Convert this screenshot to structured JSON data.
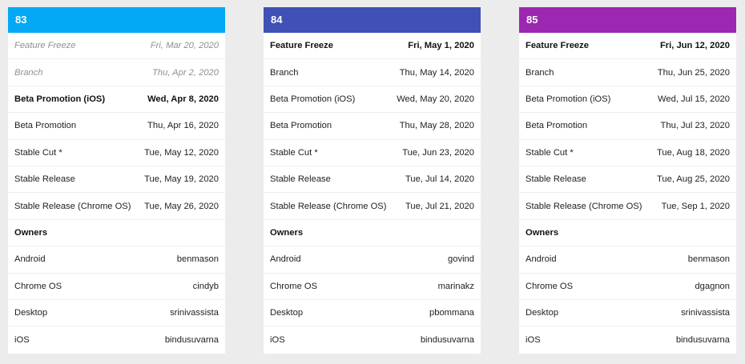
{
  "colors": {
    "card_83": "#03a9f4",
    "card_84": "#3f51b5",
    "card_85": "#9c27b0",
    "background": "#ececec"
  },
  "cards": [
    {
      "milestone": "83",
      "rows": [
        {
          "label": "Feature Freeze",
          "value": "Fri, Mar 20, 2020",
          "style": "muted"
        },
        {
          "label": "Branch",
          "value": "Thu, Apr 2, 2020",
          "style": "muted"
        },
        {
          "label": "Beta Promotion (iOS)",
          "value": "Wed, Apr 8, 2020",
          "style": "bold"
        },
        {
          "label": "Beta Promotion",
          "value": "Thu, Apr 16, 2020",
          "style": "normal"
        },
        {
          "label": "Stable Cut *",
          "value": "Tue, May 12, 2020",
          "style": "normal"
        },
        {
          "label": "Stable Release",
          "value": "Tue, May 19, 2020",
          "style": "normal"
        },
        {
          "label": "Stable Release (Chrome OS)",
          "value": "Tue, May 26, 2020",
          "style": "normal"
        },
        {
          "label": "Owners",
          "value": "",
          "style": "bold"
        },
        {
          "label": "Android",
          "value": "benmason",
          "style": "normal"
        },
        {
          "label": "Chrome OS",
          "value": "cindyb",
          "style": "normal"
        },
        {
          "label": "Desktop",
          "value": "srinivassista",
          "style": "normal"
        },
        {
          "label": "iOS",
          "value": "bindusuvarna",
          "style": "normal"
        }
      ]
    },
    {
      "milestone": "84",
      "rows": [
        {
          "label": "Feature Freeze",
          "value": "Fri, May 1, 2020",
          "style": "bold"
        },
        {
          "label": "Branch",
          "value": "Thu, May 14, 2020",
          "style": "normal"
        },
        {
          "label": "Beta Promotion (iOS)",
          "value": "Wed, May 20, 2020",
          "style": "normal"
        },
        {
          "label": "Beta Promotion",
          "value": "Thu, May 28, 2020",
          "style": "normal"
        },
        {
          "label": "Stable Cut *",
          "value": "Tue, Jun 23, 2020",
          "style": "normal"
        },
        {
          "label": "Stable Release",
          "value": "Tue, Jul 14, 2020",
          "style": "normal"
        },
        {
          "label": "Stable Release (Chrome OS)",
          "value": "Tue, Jul 21, 2020",
          "style": "normal"
        },
        {
          "label": "Owners",
          "value": "",
          "style": "bold"
        },
        {
          "label": "Android",
          "value": "govind",
          "style": "normal"
        },
        {
          "label": "Chrome OS",
          "value": "marinakz",
          "style": "normal"
        },
        {
          "label": "Desktop",
          "value": "pbommana",
          "style": "normal"
        },
        {
          "label": "iOS",
          "value": "bindusuvarna",
          "style": "normal"
        }
      ]
    },
    {
      "milestone": "85",
      "rows": [
        {
          "label": "Feature Freeze",
          "value": "Fri, Jun 12, 2020",
          "style": "bold"
        },
        {
          "label": "Branch",
          "value": "Thu, Jun 25, 2020",
          "style": "normal"
        },
        {
          "label": "Beta Promotion (iOS)",
          "value": "Wed, Jul 15, 2020",
          "style": "normal"
        },
        {
          "label": "Beta Promotion",
          "value": "Thu, Jul 23, 2020",
          "style": "normal"
        },
        {
          "label": "Stable Cut *",
          "value": "Tue, Aug 18, 2020",
          "style": "normal"
        },
        {
          "label": "Stable Release",
          "value": "Tue, Aug 25, 2020",
          "style": "normal"
        },
        {
          "label": "Stable Release (Chrome OS)",
          "value": "Tue, Sep 1, 2020",
          "style": "normal"
        },
        {
          "label": "Owners",
          "value": "",
          "style": "bold"
        },
        {
          "label": "Android",
          "value": "benmason",
          "style": "normal"
        },
        {
          "label": "Chrome OS",
          "value": "dgagnon",
          "style": "normal"
        },
        {
          "label": "Desktop",
          "value": "srinivassista",
          "style": "normal"
        },
        {
          "label": "iOS",
          "value": "bindusuvarna",
          "style": "normal"
        }
      ]
    }
  ]
}
